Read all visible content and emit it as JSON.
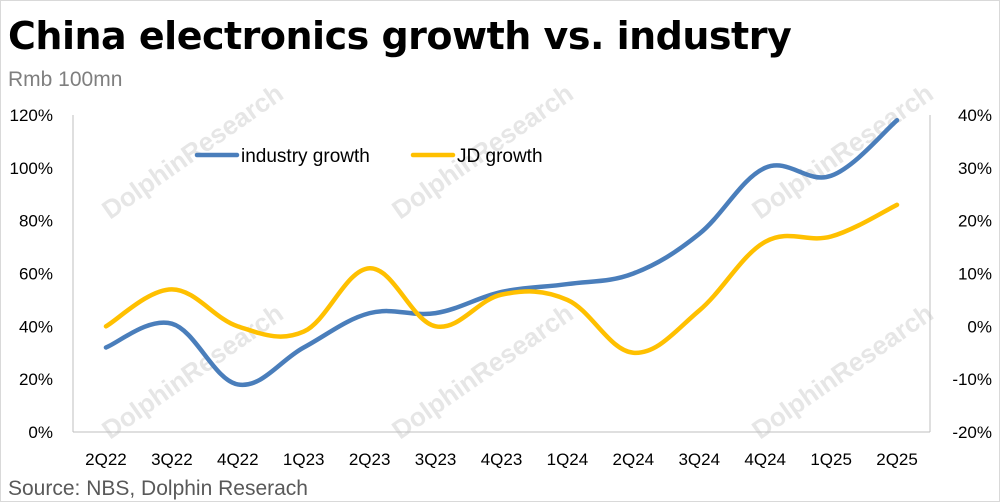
{
  "title": "China electronics growth vs. industry",
  "unit_label": "Rmb 100mn",
  "source": "Source: NBS, Dolphin Reserach",
  "watermark": "DolphinResearch",
  "chart_data": {
    "type": "line",
    "title": "China electronics growth vs. industry",
    "categories": [
      "2Q22",
      "3Q22",
      "4Q22",
      "1Q23",
      "2Q23",
      "3Q23",
      "4Q23",
      "1Q24",
      "2Q24",
      "3Q24",
      "4Q24",
      "1Q25",
      "2Q25"
    ],
    "series": [
      {
        "name": "industry growth",
        "axis": "left",
        "color": "#4a7ebb",
        "values": [
          32,
          41,
          18,
          32,
          45,
          45,
          53,
          56,
          60,
          75,
          100,
          97,
          118
        ]
      },
      {
        "name": "JD growth",
        "axis": "right",
        "color": "#ffc000",
        "values": [
          0,
          7,
          0,
          -1,
          11,
          0,
          6,
          5,
          -5,
          3,
          16,
          17,
          23
        ]
      }
    ],
    "y_left": {
      "min": 0,
      "max": 120,
      "step": 20,
      "tick_labels": [
        "0%",
        "20%",
        "40%",
        "60%",
        "80%",
        "100%",
        "120%"
      ]
    },
    "y_right": {
      "min": -20,
      "max": 40,
      "step": 10,
      "tick_labels": [
        "-20%",
        "-10%",
        "0%",
        "10%",
        "20%",
        "30%",
        "40%"
      ]
    },
    "grid": false,
    "legend_position": "top-left"
  }
}
